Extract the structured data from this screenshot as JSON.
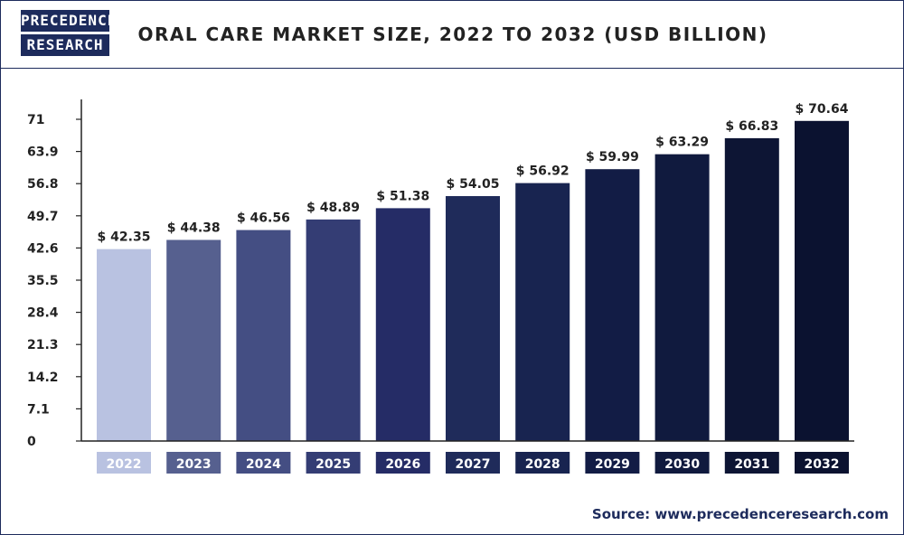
{
  "header": {
    "logo_line1": "PRECEDENCE",
    "logo_line2": "RESEARCH",
    "brand_color": "#1d2b5c"
  },
  "chart_data": {
    "type": "bar",
    "title": "ORAL CARE MARKET SIZE, 2022 TO 2032 (USD BILLION)",
    "categories": [
      "2022",
      "2023",
      "2024",
      "2025",
      "2026",
      "2027",
      "2028",
      "2029",
      "2030",
      "2031",
      "2032"
    ],
    "values": [
      42.35,
      44.38,
      46.56,
      48.89,
      51.38,
      54.05,
      56.92,
      59.99,
      63.29,
      66.83,
      70.64
    ],
    "value_labels": [
      "$ 42.35",
      "$ 44.38",
      "$ 46.56",
      "$ 48.89",
      "$ 51.38",
      "$ 54.05",
      "$ 56.92",
      "$ 59.99",
      "$ 63.29",
      "$ 66.83",
      "$ 70.64"
    ],
    "yticks": [
      0,
      7.1,
      14.2,
      21.3,
      28.4,
      35.5,
      42.6,
      49.7,
      56.8,
      63.9,
      71
    ],
    "ylim": [
      0,
      71
    ],
    "xlabel": "",
    "ylabel": "",
    "grid": false,
    "legend": "none",
    "bar_colors": [
      "#b9c2e1",
      "#56608f",
      "#444e83",
      "#343d74",
      "#252c66",
      "#1f2b5a",
      "#182450",
      "#121c45",
      "#101a3e",
      "#0d1534",
      "#0b1230"
    ]
  },
  "source": "Source: www.precedenceresearch.com"
}
